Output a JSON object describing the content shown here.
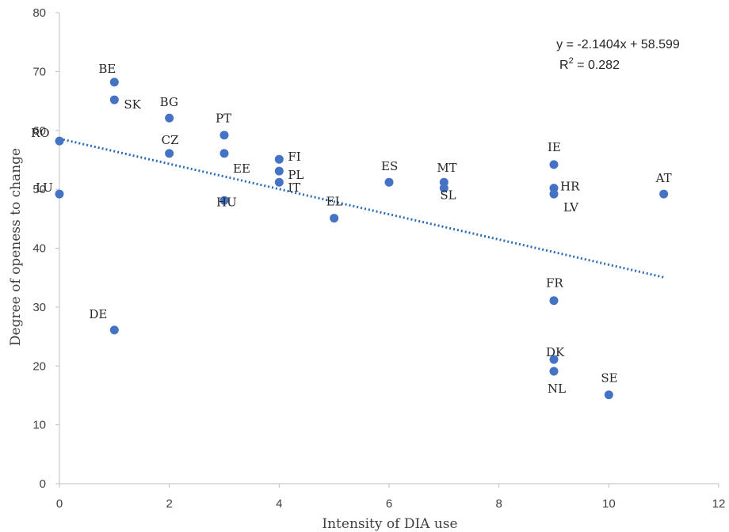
{
  "chart_data": {
    "type": "scatter",
    "xlabel": "Intensity of DIA use",
    "ylabel": "Degree of openess to change",
    "xlim": [
      0,
      12
    ],
    "ylim": [
      0,
      80
    ],
    "xticks": [
      "0",
      "2",
      "4",
      "6",
      "8",
      "10",
      "12"
    ],
    "yticks": [
      "0",
      "10",
      "20",
      "30",
      "40",
      "50",
      "60",
      "70",
      "80"
    ],
    "grid": false,
    "marker_color": "#4472c4",
    "trendline": {
      "style": "dotted",
      "color": "#2e6db4",
      "slope": -2.1404,
      "intercept": 58.599,
      "x_range": [
        0,
        11
      ],
      "equation": "y = -2.1404x + 58.599",
      "r2_prefix": "R",
      "r2_exp": "2",
      "r2_suffix": " = 0.282"
    },
    "points": [
      {
        "label": "RO",
        "x": 0,
        "y": 58.2
      },
      {
        "label": "LU",
        "x": 0,
        "y": 49.2
      },
      {
        "label": "BE",
        "x": 1,
        "y": 68.2
      },
      {
        "label": "SK",
        "x": 1,
        "y": 65.2
      },
      {
        "label": "DE",
        "x": 1,
        "y": 26.1
      },
      {
        "label": "BG",
        "x": 2,
        "y": 62.1
      },
      {
        "label": "CZ",
        "x": 2,
        "y": 56.1
      },
      {
        "label": "PT",
        "x": 3,
        "y": 59.2
      },
      {
        "label": "EE",
        "x": 3,
        "y": 56.1
      },
      {
        "label": "HU",
        "x": 3,
        "y": 48.1
      },
      {
        "label": "FI",
        "x": 4,
        "y": 55.1
      },
      {
        "label": "PL",
        "x": 4,
        "y": 53.1
      },
      {
        "label": "IT",
        "x": 4,
        "y": 51.2
      },
      {
        "label": "EL",
        "x": 5,
        "y": 45.1
      },
      {
        "label": "ES",
        "x": 6,
        "y": 51.2
      },
      {
        "label": "MT",
        "x": 7,
        "y": 51.2
      },
      {
        "label": "SL",
        "x": 7,
        "y": 50.2
      },
      {
        "label": "IE",
        "x": 9,
        "y": 54.2
      },
      {
        "label": "HR",
        "x": 9,
        "y": 50.2
      },
      {
        "label": "LV",
        "x": 9,
        "y": 49.2
      },
      {
        "label": "FR",
        "x": 9,
        "y": 31.1
      },
      {
        "label": "DK",
        "x": 9,
        "y": 21.1
      },
      {
        "label": "NL",
        "x": 9,
        "y": 19.1
      },
      {
        "label": "SE",
        "x": 10,
        "y": 15.1
      },
      {
        "label": "AT",
        "x": 11,
        "y": 49.2
      }
    ]
  }
}
